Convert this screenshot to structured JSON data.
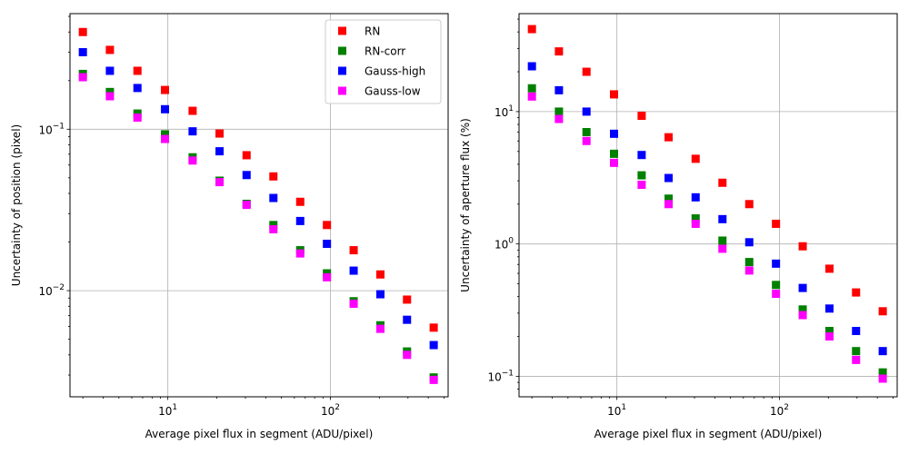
{
  "chart_data": [
    {
      "type": "scatter",
      "xscale": "log",
      "yscale": "log",
      "xlabel": "Average pixel flux in segment (ADU/pixel)",
      "ylabel": "Uncertainty of position (pixel)",
      "xlim": [
        2.5,
        530
      ],
      "ylim": [
        0.0022,
        0.52
      ],
      "grid": true,
      "legend": "top-right",
      "x": [
        3.0,
        4.4,
        6.5,
        9.6,
        14.2,
        20.8,
        30.5,
        44.6,
        65.2,
        95.2,
        139,
        203,
        296,
        432
      ],
      "series": [
        {
          "name": "RN",
          "color": "#ff0000",
          "values": [
            0.4,
            0.31,
            0.23,
            0.175,
            0.13,
            0.094,
            0.069,
            0.051,
            0.0355,
            0.0255,
            0.0178,
            0.0126,
            0.0088,
            0.0059
          ]
        },
        {
          "name": "RN-corr",
          "color": "#008000",
          "values": [
            0.22,
            0.17,
            0.125,
            0.093,
            0.067,
            0.048,
            0.0345,
            0.0255,
            0.0178,
            0.0128,
            0.0086,
            0.0061,
            0.0042,
            0.0029
          ]
        },
        {
          "name": "Gauss-high",
          "color": "#0000ff",
          "values": [
            0.3,
            0.23,
            0.18,
            0.133,
            0.097,
            0.073,
            0.052,
            0.0375,
            0.027,
            0.0195,
            0.0133,
            0.0095,
            0.0066,
            0.0046
          ]
        },
        {
          "name": "Gauss-low",
          "color": "#ff00ff",
          "values": [
            0.21,
            0.16,
            0.118,
            0.087,
            0.064,
            0.047,
            0.034,
            0.024,
            0.017,
            0.0121,
            0.0083,
            0.0058,
            0.004,
            0.0028
          ]
        }
      ],
      "xticks": [
        {
          "value": 10,
          "base": "10",
          "exp": "1"
        },
        {
          "value": 100,
          "base": "10",
          "exp": "2"
        }
      ],
      "yticks": [
        {
          "value": 0.1,
          "base": "10",
          "exp": "−1"
        },
        {
          "value": 0.01,
          "base": "10",
          "exp": "−2"
        }
      ]
    },
    {
      "type": "scatter",
      "xscale": "log",
      "yscale": "log",
      "xlabel": "Average pixel flux in segment (ADU/pixel)",
      "ylabel": "Uncertainty of aperture flux (%)",
      "xlim": [
        2.5,
        530
      ],
      "ylim": [
        0.07,
        55
      ],
      "grid": true,
      "legend": "none",
      "x": [
        3.0,
        4.4,
        6.5,
        9.6,
        14.2,
        20.8,
        30.5,
        44.6,
        65.2,
        95.2,
        139,
        203,
        296,
        432
      ],
      "series": [
        {
          "name": "RN",
          "color": "#ff0000",
          "values": [
            42,
            28.5,
            20,
            13.5,
            9.3,
            6.4,
            4.4,
            2.9,
            2.0,
            1.42,
            0.96,
            0.65,
            0.43,
            0.31
          ]
        },
        {
          "name": "RN-corr",
          "color": "#008000",
          "values": [
            15,
            10,
            7.0,
            4.8,
            3.3,
            2.2,
            1.56,
            1.06,
            0.73,
            0.49,
            0.32,
            0.22,
            0.155,
            0.107
          ]
        },
        {
          "name": "Gauss-high",
          "color": "#0000ff",
          "values": [
            22,
            14.5,
            10,
            6.8,
            4.7,
            3.15,
            2.25,
            1.54,
            1.03,
            0.71,
            0.465,
            0.325,
            0.22,
            0.155
          ]
        },
        {
          "name": "Gauss-low",
          "color": "#ff00ff",
          "values": [
            13,
            8.8,
            6.0,
            4.1,
            2.8,
            2.0,
            1.42,
            0.92,
            0.63,
            0.42,
            0.29,
            0.2,
            0.133,
            0.096
          ]
        }
      ],
      "xticks": [
        {
          "value": 10,
          "base": "10",
          "exp": "1"
        },
        {
          "value": 100,
          "base": "10",
          "exp": "2"
        }
      ],
      "yticks": [
        {
          "value": 10,
          "base": "10",
          "exp": "1"
        },
        {
          "value": 1,
          "base": "10",
          "exp": "0"
        },
        {
          "value": 0.1,
          "base": "10",
          "exp": "−1"
        }
      ]
    }
  ]
}
